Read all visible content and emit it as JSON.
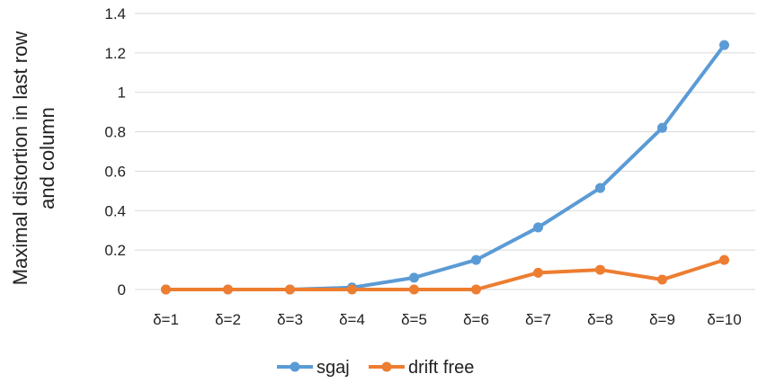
{
  "chart_data": {
    "type": "line",
    "categories": [
      "δ=1",
      "δ=2",
      "δ=3",
      "δ=4",
      "δ=5",
      "δ=6",
      "δ=7",
      "δ=8",
      "δ=9",
      "δ=10"
    ],
    "series": [
      {
        "name": "sgaj",
        "color": "#5B9BD5",
        "values": [
          0,
          0,
          0,
          0.01,
          0.06,
          0.15,
          0.315,
          0.515,
          0.82,
          1.24
        ]
      },
      {
        "name": "drift free",
        "color": "#ED7D31",
        "values": [
          0,
          0,
          0,
          0,
          0,
          0,
          0.085,
          0.1,
          0.05,
          0.15
        ]
      }
    ],
    "ylabel": [
      "Maximal distortion in last row",
      "and column"
    ],
    "ylim": [
      0,
      1.4
    ],
    "yticks": [
      "0",
      "0.2",
      "0.4",
      "0.6",
      "0.8",
      "1",
      "1.2",
      "1.4"
    ],
    "grid": true,
    "legend": "bottom"
  }
}
